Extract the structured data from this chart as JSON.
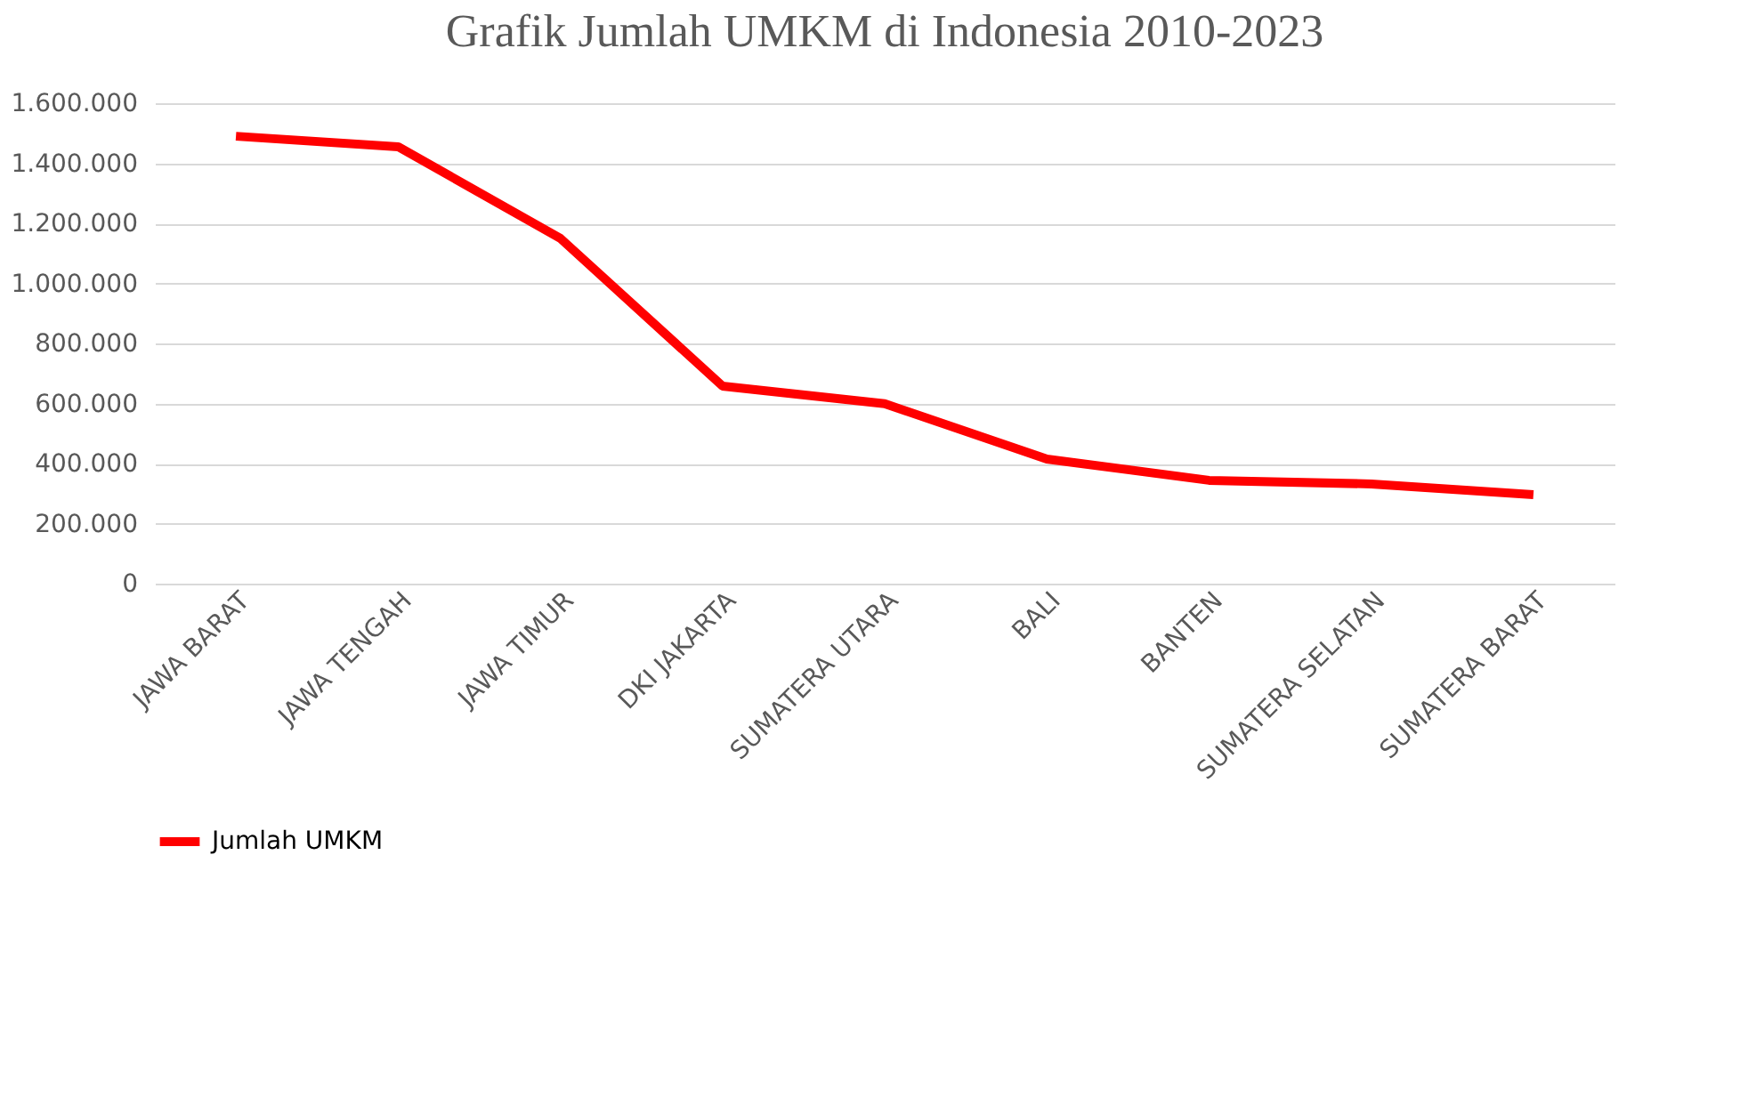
{
  "chart_data": {
    "type": "line",
    "title": "Grafik Jumlah UMKM di Indonesia 2010-2023",
    "categories": [
      "JAWA BARAT",
      "JAWA TENGAH",
      "JAWA TIMUR",
      "DKI JAKARTA",
      "SUMATERA UTARA",
      "BALI",
      "BANTEN",
      "SUMATERA SELATAN",
      "SUMATERA BARAT"
    ],
    "series": [
      {
        "name": "Jumlah UMKM",
        "color": "#ff0000",
        "values": [
          1490000,
          1455000,
          1150000,
          658000,
          599000,
          415000,
          344000,
          332000,
          296000
        ]
      }
    ],
    "ylim": [
      0,
      1600000
    ],
    "yticks": [
      {
        "value": 0,
        "label": "0"
      },
      {
        "value": 200000,
        "label": "200.000"
      },
      {
        "value": 400000,
        "label": "400.000"
      },
      {
        "value": 600000,
        "label": "600.000"
      },
      {
        "value": 800000,
        "label": "800.000"
      },
      {
        "value": 1000000,
        "label": "1.000.000"
      },
      {
        "value": 1200000,
        "label": "1.200.000"
      },
      {
        "value": 1400000,
        "label": "1.400.000"
      },
      {
        "value": 1600000,
        "label": "1.600.000"
      }
    ],
    "grid": "y",
    "legend": "bottom",
    "line_style": "solid",
    "marker": "none"
  }
}
